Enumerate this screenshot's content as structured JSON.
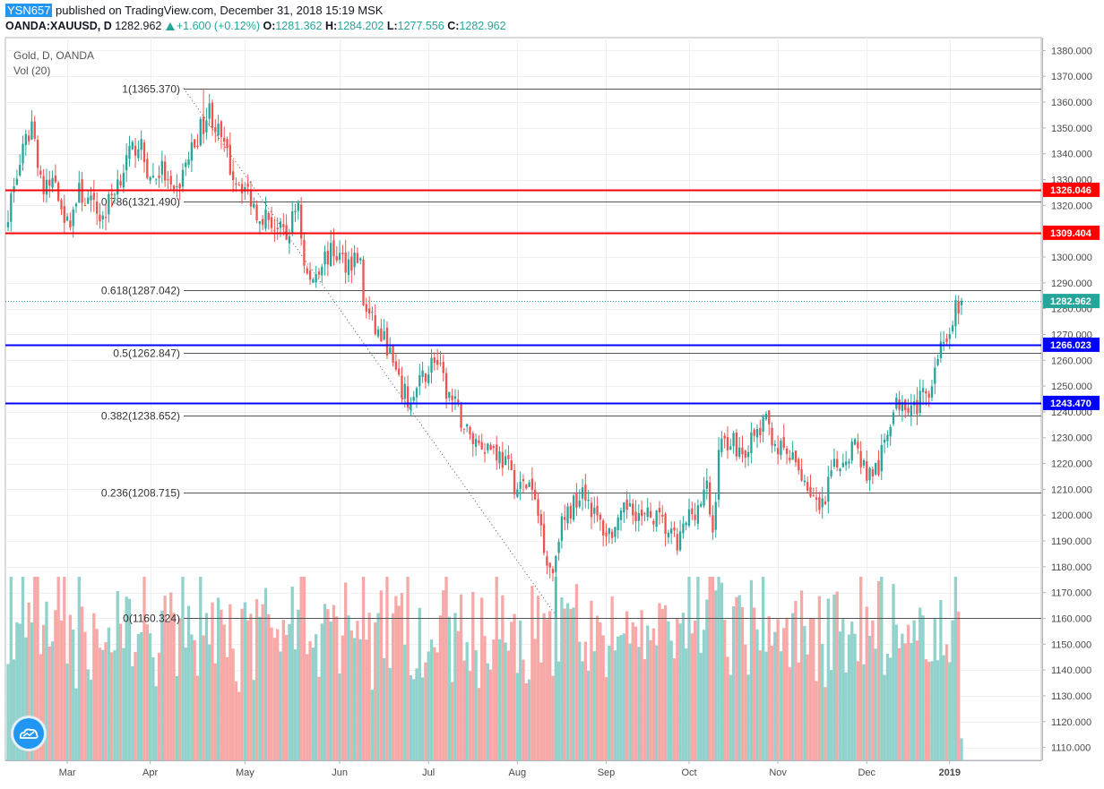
{
  "header": {
    "user": "YSN657",
    "published": "published on TradingView.com, December 31, 2018 15:19 MSK",
    "symbol": "OANDA:XAUUSD, D",
    "last": "1282.962",
    "change": "+1.600 (+0.12%)",
    "o_label": "O:",
    "o": "1281.362",
    "h_label": "H:",
    "h": "1284.202",
    "l_label": "L:",
    "l": "1277.556",
    "c_label": "C:",
    "c": "1282.962"
  },
  "legend": {
    "title": "Gold, D, OANDA",
    "volume": "Vol (20)"
  },
  "colors": {
    "up": "#26a69a",
    "down": "#ef5350",
    "vol_up": "#92d2cc",
    "vol_down": "#f7a9a7",
    "resistance": "#ff0000",
    "support": "#0000ff"
  },
  "chart_data": {
    "type": "candlestick",
    "price_axis": {
      "ticks": [
        1110,
        1120,
        1130,
        1140,
        1150,
        1160,
        1170,
        1180,
        1190,
        1200,
        1210,
        1220,
        1230,
        1240,
        1250,
        1260,
        1270,
        1280,
        1290,
        1300,
        1310,
        1320,
        1330,
        1340,
        1350,
        1360,
        1370,
        1380
      ]
    },
    "time_axis": {
      "labels": [
        "Mar",
        "Apr",
        "May",
        "Jun",
        "Jul",
        "Aug",
        "Sep",
        "Oct",
        "Nov",
        "Dec",
        "2019"
      ]
    },
    "last_price": "1282.962",
    "fibonacci": [
      {
        "label": "1(1365.370)",
        "price": 1365.37
      },
      {
        "label": "0.786(1321.490)",
        "price": 1321.49
      },
      {
        "label": "0.618(1287.042)",
        "price": 1287.042
      },
      {
        "label": "0.5(1262.847)",
        "price": 1262.847
      },
      {
        "label": "0.382(1238.652)",
        "price": 1238.652
      },
      {
        "label": "0.236(1208.715)",
        "price": 1208.715
      },
      {
        "label": "0(1160.324)",
        "price": 1160.324
      }
    ],
    "horizontal_levels": [
      {
        "label": "1326.046",
        "price": 1326.046,
        "kind": "resistance"
      },
      {
        "label": "1309.404",
        "price": 1309.404,
        "kind": "resistance"
      },
      {
        "label": "1266.023",
        "price": 1266.023,
        "kind": "support"
      },
      {
        "label": "1243.470",
        "price": 1243.47,
        "kind": "support"
      }
    ],
    "trend_line": {
      "from_price": 1365.37,
      "to_price": 1160.324,
      "style": "dotted"
    },
    "close_path": [
      [
        0,
        1318
      ],
      [
        4,
        1336
      ],
      [
        8,
        1352
      ],
      [
        12,
        1325
      ],
      [
        16,
        1330
      ],
      [
        20,
        1312
      ],
      [
        24,
        1325
      ],
      [
        28,
        1320
      ],
      [
        32,
        1315
      ],
      [
        36,
        1327
      ],
      [
        40,
        1337
      ],
      [
        44,
        1345
      ],
      [
        48,
        1330
      ],
      [
        52,
        1334
      ],
      [
        56,
        1322
      ],
      [
        60,
        1336
      ],
      [
        64,
        1347
      ],
      [
        68,
        1357
      ],
      [
        72,
        1345
      ],
      [
        76,
        1332
      ],
      [
        80,
        1327
      ],
      [
        84,
        1318
      ],
      [
        88,
        1315
      ],
      [
        90,
        1312
      ],
      [
        94,
        1307
      ],
      [
        98,
        1322
      ],
      [
        100,
        1296
      ],
      [
        102,
        1290
      ],
      [
        106,
        1299
      ],
      [
        110,
        1302
      ],
      [
        114,
        1298
      ],
      [
        118,
        1300
      ],
      [
        119,
        1297
      ],
      [
        120,
        1282
      ],
      [
        124,
        1272
      ],
      [
        128,
        1266
      ],
      [
        132,
        1250
      ],
      [
        136,
        1243
      ],
      [
        140,
        1253
      ],
      [
        144,
        1261
      ],
      [
        148,
        1248
      ],
      [
        152,
        1240
      ],
      [
        156,
        1230
      ],
      [
        160,
        1228
      ],
      [
        164,
        1226
      ],
      [
        168,
        1220
      ],
      [
        172,
        1210
      ],
      [
        176,
        1212
      ],
      [
        180,
        1196
      ],
      [
        182,
        1183
      ],
      [
        184,
        1178
      ],
      [
        186,
        1194
      ],
      [
        190,
        1202
      ],
      [
        194,
        1212
      ],
      [
        198,
        1200
      ],
      [
        202,
        1193
      ],
      [
        206,
        1195
      ],
      [
        210,
        1206
      ],
      [
        214,
        1198
      ],
      [
        218,
        1200
      ],
      [
        222,
        1195
      ],
      [
        226,
        1188
      ],
      [
        230,
        1200
      ],
      [
        234,
        1205
      ],
      [
        236,
        1210
      ],
      [
        238,
        1192
      ],
      [
        240,
        1226
      ],
      [
        244,
        1230
      ],
      [
        248,
        1224
      ],
      [
        252,
        1230
      ],
      [
        256,
        1236
      ],
      [
        260,
        1226
      ],
      [
        264,
        1222
      ],
      [
        268,
        1216
      ],
      [
        272,
        1207
      ],
      [
        274,
        1200
      ],
      [
        276,
        1205
      ],
      [
        278,
        1216
      ],
      [
        282,
        1222
      ],
      [
        286,
        1228
      ],
      [
        290,
        1216
      ],
      [
        294,
        1218
      ],
      [
        298,
        1238
      ],
      [
        302,
        1246
      ],
      [
        306,
        1242
      ],
      [
        310,
        1246
      ],
      [
        314,
        1262
      ],
      [
        316,
        1270
      ],
      [
        318,
        1266
      ],
      [
        320,
        1279
      ],
      [
        322,
        1283
      ]
    ],
    "candle_count": 323,
    "price_range": [
      1105,
      1385
    ]
  }
}
